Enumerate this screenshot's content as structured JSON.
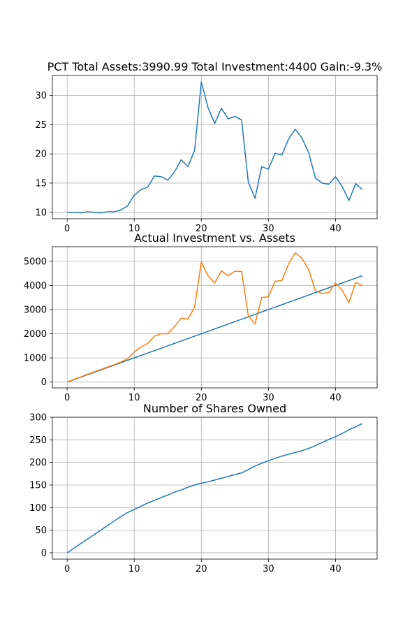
{
  "chart_data": [
    {
      "type": "line",
      "title": "PCT Total Assets:3990.99  Total Investment:4400  Gain:-9.3%",
      "xlabel": "",
      "ylabel": "",
      "xlim": [
        -2.2,
        46.2
      ],
      "ylim": [
        8.9,
        33.4
      ],
      "xticks": [
        0,
        10,
        20,
        30,
        40
      ],
      "yticks": [
        10,
        15,
        20,
        25,
        30
      ],
      "grid": true,
      "x": [
        0,
        1,
        2,
        3,
        4,
        5,
        6,
        7,
        8,
        9,
        10,
        11,
        12,
        13,
        14,
        15,
        16,
        17,
        18,
        19,
        20,
        21,
        22,
        23,
        24,
        25,
        26,
        27,
        28,
        29,
        30,
        31,
        32,
        33,
        34,
        35,
        36,
        37,
        38,
        39,
        40,
        41,
        42,
        43,
        44
      ],
      "series": [
        {
          "color": "#1f77b4",
          "values": [
            10.0,
            10.0,
            9.9,
            10.1,
            10.0,
            9.9,
            10.1,
            10.1,
            10.4,
            11.1,
            12.9,
            13.9,
            14.3,
            16.2,
            16.1,
            15.5,
            16.9,
            19.0,
            17.8,
            20.6,
            32.3,
            27.9,
            25.2,
            27.8,
            26.0,
            26.4,
            25.8,
            15.2,
            12.4,
            17.8,
            17.4,
            20.1,
            19.8,
            22.5,
            24.2,
            22.7,
            20.2,
            15.9,
            15.0,
            14.8,
            16.1,
            14.4,
            12.0,
            14.9,
            13.9
          ]
        }
      ]
    },
    {
      "type": "line",
      "title": "Actual Investment vs. Assets",
      "xlabel": "",
      "ylabel": "",
      "xlim": [
        -2.2,
        46.2
      ],
      "ylim": [
        -240,
        5600
      ],
      "xticks": [
        0,
        10,
        20,
        30,
        40
      ],
      "yticks": [
        0,
        1000,
        2000,
        3000,
        4000,
        5000
      ],
      "grid": true,
      "x": [
        0,
        1,
        2,
        3,
        4,
        5,
        6,
        7,
        8,
        9,
        10,
        11,
        12,
        13,
        14,
        15,
        16,
        17,
        18,
        19,
        20,
        21,
        22,
        23,
        24,
        25,
        26,
        27,
        28,
        29,
        30,
        31,
        32,
        33,
        34,
        35,
        36,
        37,
        38,
        39,
        40,
        41,
        42,
        43,
        44
      ],
      "series": [
        {
          "color": "#1f77b4",
          "values": [
            0,
            100,
            200,
            300,
            400,
            500,
            600,
            700,
            800,
            900,
            1000,
            1100,
            1200,
            1300,
            1400,
            1500,
            1600,
            1700,
            1800,
            1900,
            2000,
            2100,
            2200,
            2300,
            2400,
            2500,
            2600,
            2700,
            2800,
            2900,
            3000,
            3100,
            3200,
            3300,
            3400,
            3500,
            3600,
            3700,
            3800,
            3900,
            4000,
            4100,
            4200,
            4300,
            4400
          ]
        },
        {
          "color": "#ff7f0e",
          "values": [
            0,
            110,
            210,
            320,
            420,
            520,
            620,
            720,
            830,
            960,
            1250,
            1450,
            1600,
            1900,
            2000,
            2000,
            2300,
            2650,
            2600,
            3100,
            4970,
            4400,
            4100,
            4600,
            4400,
            4580,
            4580,
            2750,
            2400,
            3500,
            3530,
            4170,
            4200,
            4880,
            5350,
            5120,
            4660,
            3780,
            3670,
            3700,
            4090,
            3800,
            3280,
            4130,
            3990
          ]
        }
      ]
    },
    {
      "type": "line",
      "title": "Number of Shares Owned",
      "xlabel": "",
      "ylabel": "",
      "xlim": [
        -2.2,
        46.2
      ],
      "ylim": [
        -14,
        300
      ],
      "xticks": [
        0,
        10,
        20,
        30,
        40
      ],
      "yticks": [
        0,
        50,
        100,
        150,
        200,
        250,
        300
      ],
      "grid": true,
      "x": [
        0,
        1,
        2,
        3,
        4,
        5,
        6,
        7,
        8,
        9,
        10,
        11,
        12,
        13,
        14,
        15,
        16,
        17,
        18,
        19,
        20,
        21,
        22,
        23,
        24,
        25,
        26,
        27,
        28,
        29,
        30,
        31,
        32,
        33,
        34,
        35,
        36,
        37,
        38,
        39,
        40,
        41,
        42,
        43,
        44
      ],
      "series": [
        {
          "color": "#1f77b4",
          "values": [
            0,
            10,
            20,
            30,
            40,
            50,
            60,
            70,
            80,
            89,
            96,
            103,
            110,
            116,
            122,
            128,
            134,
            139,
            145,
            150,
            154,
            157,
            161,
            165,
            169,
            173,
            177,
            184,
            192,
            198,
            204,
            209,
            214,
            218,
            222,
            226,
            231,
            237,
            244,
            251,
            257,
            264,
            272,
            279,
            286
          ]
        }
      ]
    }
  ]
}
